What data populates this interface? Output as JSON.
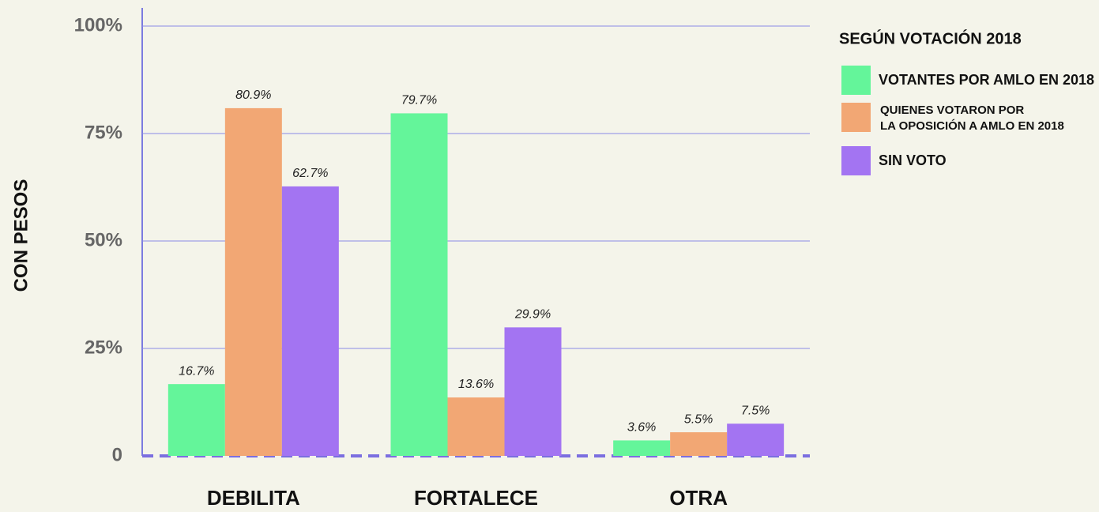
{
  "chart_data": {
    "type": "bar",
    "y_label": "CON PESOS",
    "legend_title": "SEGÚN VOTACIÓN 2018",
    "categories": [
      "DEBILITA",
      "FORTALECE",
      "OTRA"
    ],
    "series": [
      {
        "name": "VOTANTES POR AMLO EN 2018",
        "color": "#64f59a",
        "values": [
          16.7,
          79.7,
          3.6
        ],
        "value_labels": [
          "16.7%",
          "79.7%",
          "3.6%"
        ]
      },
      {
        "name": "QUIENES VOTARON POR\nLA OPOSICIÓN A AMLO EN 2018",
        "color": "#f2a774",
        "values": [
          80.9,
          13.6,
          5.5
        ],
        "value_labels": [
          "80.9%",
          "13.6%",
          "5.5%"
        ]
      },
      {
        "name": "SIN VOTO",
        "color": "#a374f2",
        "values": [
          62.7,
          29.9,
          7.5
        ],
        "value_labels": [
          "62.7%",
          "29.9%",
          "7.5%"
        ]
      }
    ],
    "ylim": [
      0,
      100
    ],
    "yticks": [
      0,
      {
        "value": 25,
        "label": "25%"
      },
      {
        "value": 50,
        "label": "50%"
      },
      {
        "value": 75,
        "label": "75%"
      },
      {
        "value": 100,
        "label": "100%"
      }
    ],
    "grid": true,
    "legend": "upper right"
  }
}
